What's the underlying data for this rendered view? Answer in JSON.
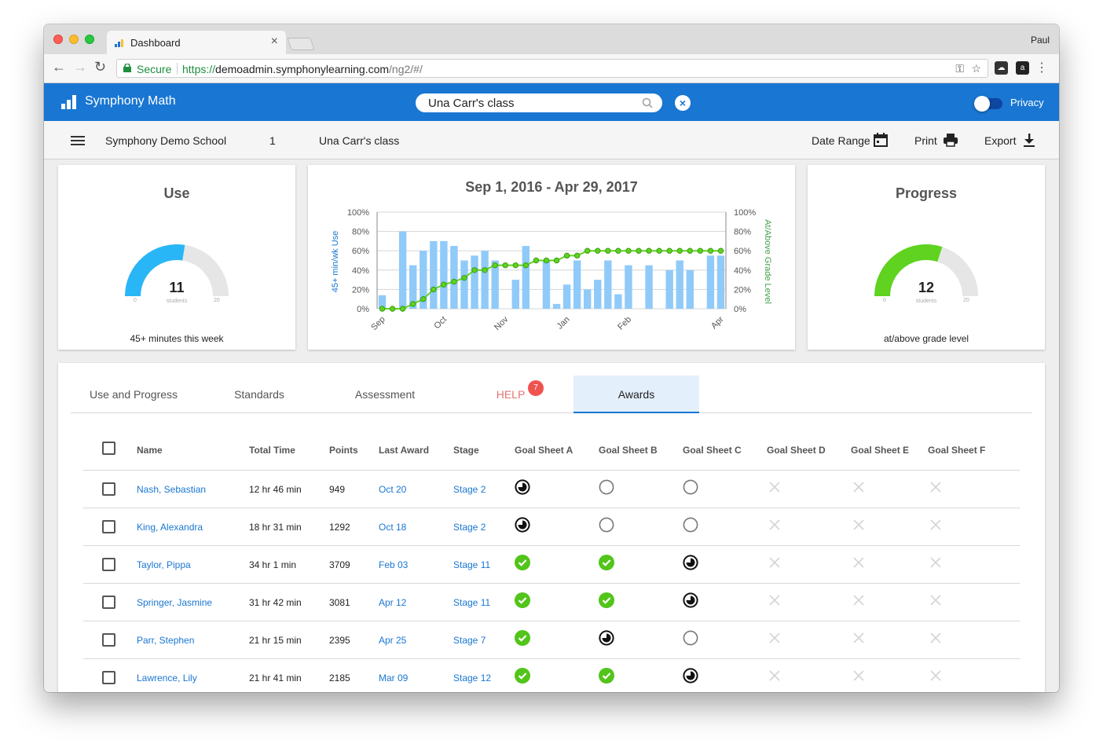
{
  "browser": {
    "tab_title": "Dashboard",
    "profile": "Paul",
    "secure_label": "Secure",
    "url_scheme": "https://",
    "url_host": "demoadmin.symphonylearning.com",
    "url_path": "/ng2/#/"
  },
  "app": {
    "brand": "Symphony Math",
    "search_value": "Una Carr's class",
    "privacy_label": "Privacy",
    "accent": "#1976d2"
  },
  "subheader": {
    "school": "Symphony Demo School",
    "grade": "1",
    "class": "Una Carr's class",
    "date_range": "Date Range",
    "print": "Print",
    "export": "Export"
  },
  "use_card": {
    "title": "Use",
    "value": "11",
    "unit": "students",
    "min": "0",
    "max": "20",
    "fraction": 0.55,
    "color": "#29b6f6",
    "caption": "45+ minutes this week"
  },
  "progress_card": {
    "title": "Progress",
    "value": "12",
    "unit": "students",
    "min": "0",
    "max": "20",
    "fraction": 0.6,
    "color": "#5fd31f",
    "caption": "at/above grade level"
  },
  "chart_data": {
    "type": "bar",
    "title": "Sep 1, 2016 - Apr 29, 2017",
    "ylabel": "45+ min/wk Use",
    "y2label": "At/Above Grade Level",
    "ylim": [
      0,
      100
    ],
    "y_ticks": [
      "0%",
      "20%",
      "40%",
      "60%",
      "80%",
      "100%"
    ],
    "x_labels": [
      "Sep",
      "Oct",
      "Nov",
      "Jan",
      "Feb",
      "Apr"
    ],
    "x_label_index": [
      0,
      6,
      12,
      18,
      24,
      33
    ],
    "series": [
      {
        "type": "bar",
        "color": "#90caf9",
        "values": [
          14,
          0,
          80,
          45,
          60,
          70,
          70,
          65,
          50,
          55,
          60,
          50,
          0,
          30,
          65,
          0,
          50,
          5,
          25,
          50,
          20,
          30,
          50,
          15,
          45,
          0,
          45,
          0,
          40,
          50,
          40,
          0,
          55,
          55
        ]
      },
      {
        "type": "line",
        "color": "#5fd31f",
        "values": [
          0,
          0,
          0,
          5,
          10,
          20,
          25,
          28,
          32,
          40,
          40,
          45,
          45,
          45,
          45,
          50,
          50,
          50,
          55,
          55,
          60,
          60,
          60,
          60,
          60,
          60,
          60,
          60,
          60,
          60,
          60,
          60,
          60,
          60
        ]
      }
    ]
  },
  "tabs": [
    {
      "label": "Use and Progress"
    },
    {
      "label": "Standards"
    },
    {
      "label": "Assessment"
    },
    {
      "label": "HELP",
      "badge": "7"
    },
    {
      "label": "Awards",
      "active": true
    }
  ],
  "table": {
    "headers": [
      "Name",
      "Total Time",
      "Points",
      "Last Award",
      "Stage",
      "Goal Sheet A",
      "Goal Sheet B",
      "Goal Sheet C",
      "Goal Sheet D",
      "Goal Sheet E",
      "Goal Sheet F"
    ],
    "rows": [
      {
        "name": "Nash, Sebastian",
        "time": "12 hr 46 min",
        "points": "949",
        "award": "Oct 20",
        "stage": "Stage 2",
        "goals": [
          "partial",
          "empty",
          "empty",
          "none",
          "none",
          "none"
        ]
      },
      {
        "name": "King, Alexandra",
        "time": "18 hr 31 min",
        "points": "1292",
        "award": "Oct 18",
        "stage": "Stage 2",
        "goals": [
          "partial",
          "empty",
          "empty",
          "none",
          "none",
          "none"
        ]
      },
      {
        "name": "Taylor, Pippa",
        "time": "34 hr 1 min",
        "points": "3709",
        "award": "Feb 03",
        "stage": "Stage 11",
        "goals": [
          "check",
          "check",
          "partial",
          "none",
          "none",
          "none"
        ]
      },
      {
        "name": "Springer, Jasmine",
        "time": "31 hr 42 min",
        "points": "3081",
        "award": "Apr 12",
        "stage": "Stage 11",
        "goals": [
          "check",
          "check",
          "partial",
          "none",
          "none",
          "none"
        ]
      },
      {
        "name": "Parr, Stephen",
        "time": "21 hr 15 min",
        "points": "2395",
        "award": "Apr 25",
        "stage": "Stage 7",
        "goals": [
          "check",
          "partial",
          "empty",
          "none",
          "none",
          "none"
        ]
      },
      {
        "name": "Lawrence, Lily",
        "time": "21 hr 41 min",
        "points": "2185",
        "award": "Mar 09",
        "stage": "Stage 12",
        "goals": [
          "check",
          "check",
          "partial",
          "none",
          "none",
          "none"
        ]
      }
    ]
  }
}
